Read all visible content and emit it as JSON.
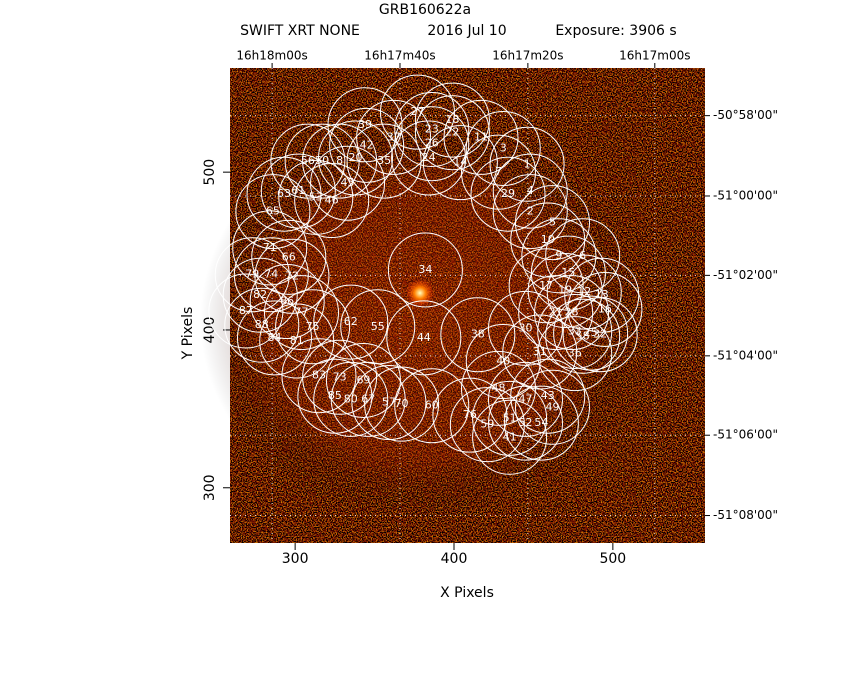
{
  "chart_data": {
    "type": "region-map",
    "title": "GRB160622a",
    "subtitle": [
      "SWIFT XRT NONE",
      "2016 Jul 10",
      "Exposure: 3906 s"
    ],
    "xlabel": "X Pixels",
    "ylabel": "Y Pixels",
    "xlim": [
      259,
      558
    ],
    "ylim": [
      265,
      566
    ],
    "xticks": [
      300,
      400,
      500
    ],
    "yticks": [
      300,
      400,
      500
    ],
    "x2ticks": [
      {
        "value": 285.5,
        "label": "16h18m00s"
      },
      {
        "value": 366,
        "label": "16h17m40s"
      },
      {
        "value": 446.5,
        "label": "16h17m20s"
      },
      {
        "value": 526.4,
        "label": "16h17m00s"
      }
    ],
    "y2ticks": [
      {
        "value": 535.8,
        "label": "-50°58'00\""
      },
      {
        "value": 484.9,
        "label": "-51°00'00\""
      },
      {
        "value": 434.6,
        "label": "-51°02'00\""
      },
      {
        "value": 383.6,
        "label": "-51°04'00\""
      },
      {
        "value": 333.3,
        "label": "-51°06'00\""
      },
      {
        "value": 282.4,
        "label": "-51°08'00\""
      }
    ],
    "grid": true,
    "color": "#ffffff",
    "labels": [
      "27",
      "18",
      "39",
      "23",
      "22",
      "11",
      "42",
      "37",
      "26",
      "3",
      "56",
      "50",
      "8",
      "20",
      "35",
      "24",
      "14",
      "1",
      "7",
      "45",
      "63",
      "61",
      "53",
      "46",
      "29",
      "4",
      "65",
      "2",
      "5",
      "10",
      "71",
      "66",
      "9",
      "6",
      "34",
      "79",
      "74",
      "72",
      "15",
      "17",
      "19",
      "12",
      "13",
      "82",
      "86",
      "87",
      "77",
      "16",
      "21",
      "28",
      "62",
      "55",
      "88",
      "75",
      "38",
      "30",
      "44",
      "84",
      "81",
      "33",
      "32",
      "25",
      "58",
      "31",
      "36",
      "40",
      "83",
      "73",
      "69",
      "48",
      "47",
      "43",
      "85",
      "80",
      "67",
      "57",
      "70",
      "60",
      "49",
      "76",
      "59",
      "51",
      "52",
      "54",
      "41"
    ],
    "x": [
      377,
      399,
      344,
      386,
      399,
      417,
      345,
      362,
      386,
      431,
      308,
      317,
      328,
      338,
      356,
      384,
      404,
      446,
      428,
      333,
      293,
      302,
      313,
      323,
      434,
      448,
      286,
      448,
      462,
      459,
      284,
      296,
      466,
      481,
      382,
      273,
      285,
      298,
      472,
      458,
      470,
      482,
      493,
      278,
      295,
      269,
      304,
      495,
      464,
      474,
      335,
      352,
      279,
      311,
      415,
      445,
      381,
      287,
      301,
      476,
      492,
      486,
      481,
      454,
      476,
      431,
      315,
      328,
      343,
      428,
      445,
      459,
      325,
      335,
      346,
      359,
      367,
      386,
      462,
      410,
      421,
      435,
      445,
      455,
      435
    ],
    "y": [
      538,
      533,
      530,
      527,
      525,
      522,
      517,
      522,
      518,
      515,
      507,
      507,
      507,
      509,
      507,
      509,
      506,
      505,
      500,
      493,
      486,
      488,
      484,
      482,
      486,
      488,
      475,
      475,
      468,
      457,
      452,
      446,
      447,
      447,
      438,
      435,
      435,
      434,
      436,
      428,
      425,
      424,
      422,
      422,
      418,
      412,
      411,
      413,
      411,
      411,
      405,
      402,
      403,
      402,
      397,
      401,
      395,
      395,
      393,
      399,
      397,
      398,
      396,
      386,
      385,
      380,
      371,
      370,
      368,
      363,
      356,
      358,
      358,
      356,
      356,
      354,
      353,
      352,
      351,
      346,
      340,
      344,
      341,
      341,
      332
    ]
  }
}
